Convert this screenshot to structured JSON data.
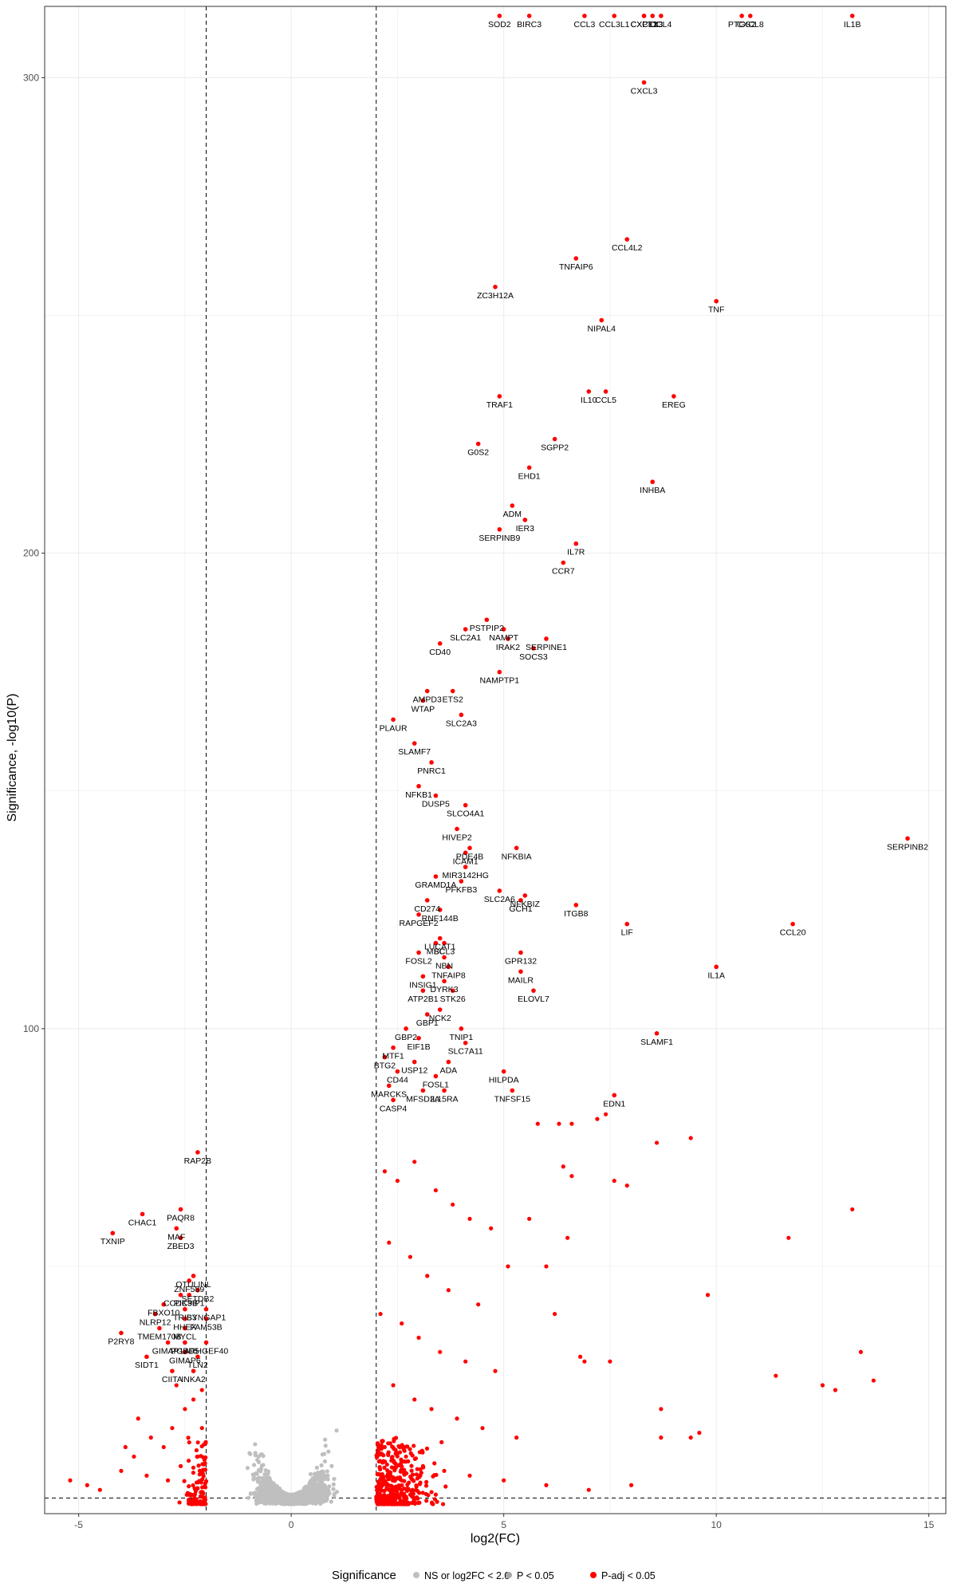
{
  "chart_data": {
    "type": "scatter",
    "title": "",
    "xlabel": "log2(FC)",
    "ylabel": "Significance, -log10(P)",
    "xlim": [
      -5.8,
      15.4
    ],
    "ylim": [
      -2,
      315
    ],
    "x_ticks": [
      -5,
      0,
      5,
      10,
      15
    ],
    "y_ticks": [
      100,
      200,
      300
    ],
    "grid": true,
    "fc_cutoff": 2.0,
    "p_cutoff_y": 1.3,
    "colors": {
      "ns": "#bfbfbf",
      "p": "#a8a8a8",
      "padj": "#ff0000",
      "label": "#000000"
    },
    "legend": {
      "position": "bottom",
      "title": "Significance",
      "entries": [
        {
          "label": "NS or log2FC < 2.0",
          "color": "#bfbfbf"
        },
        {
          "label": "P < 0.05",
          "color": "#a8a8a8"
        },
        {
          "label": "P-adj < 0.05",
          "color": "#ff0000"
        }
      ]
    },
    "labeled_points": [
      {
        "gene": "SOD2",
        "x": 4.9,
        "y": 313
      },
      {
        "gene": "BIRC3",
        "x": 5.6,
        "y": 313
      },
      {
        "gene": "CCL3",
        "x": 6.9,
        "y": 313
      },
      {
        "gene": "CCL3L1",
        "x": 7.6,
        "y": 313
      },
      {
        "gene": "CXCL2",
        "x": 8.3,
        "y": 313
      },
      {
        "gene": "CCL4",
        "x": 8.7,
        "y": 313
      },
      {
        "gene": "CXCL1",
        "x": 8.3,
        "y": 313
      },
      {
        "gene": "PTX3",
        "x": 8.5,
        "y": 313
      },
      {
        "gene": "PTGS2",
        "x": 10.6,
        "y": 313
      },
      {
        "gene": "CXCL8",
        "x": 10.8,
        "y": 313
      },
      {
        "gene": "IL1B",
        "x": 13.2,
        "y": 313
      },
      {
        "gene": "CXCL3",
        "x": 8.3,
        "y": 299
      },
      {
        "gene": "CCL4L2",
        "x": 7.9,
        "y": 266
      },
      {
        "gene": "TNFAIP6",
        "x": 6.7,
        "y": 262
      },
      {
        "gene": "ZC3H12A",
        "x": 4.8,
        "y": 256
      },
      {
        "gene": "TNF",
        "x": 10.0,
        "y": 253
      },
      {
        "gene": "NIPAL4",
        "x": 7.3,
        "y": 249
      },
      {
        "gene": "CCL5",
        "x": 7.4,
        "y": 234
      },
      {
        "gene": "IL10",
        "x": 7.0,
        "y": 234
      },
      {
        "gene": "TRAF1",
        "x": 4.9,
        "y": 233
      },
      {
        "gene": "EREG",
        "x": 9.0,
        "y": 233
      },
      {
        "gene": "SGPP2",
        "x": 6.2,
        "y": 224
      },
      {
        "gene": "G0S2",
        "x": 4.4,
        "y": 223
      },
      {
        "gene": "EHD1",
        "x": 5.6,
        "y": 218
      },
      {
        "gene": "INHBA",
        "x": 8.5,
        "y": 215
      },
      {
        "gene": "ADM",
        "x": 5.2,
        "y": 210
      },
      {
        "gene": "IER3",
        "x": 5.5,
        "y": 207
      },
      {
        "gene": "SERPINB9",
        "x": 4.9,
        "y": 205
      },
      {
        "gene": "IL7R",
        "x": 6.7,
        "y": 202
      },
      {
        "gene": "CCR7",
        "x": 6.4,
        "y": 198
      },
      {
        "gene": "PSTPIP2",
        "x": 4.6,
        "y": 186
      },
      {
        "gene": "SLC2A1",
        "x": 4.1,
        "y": 184
      },
      {
        "gene": "NAMPT",
        "x": 5.0,
        "y": 184
      },
      {
        "gene": "SERPINE1",
        "x": 6.0,
        "y": 182
      },
      {
        "gene": "CD40",
        "x": 3.5,
        "y": 181
      },
      {
        "gene": "IRAK2",
        "x": 5.1,
        "y": 182
      },
      {
        "gene": "SOCS3",
        "x": 5.7,
        "y": 180
      },
      {
        "gene": "NAMPTP1",
        "x": 4.9,
        "y": 175
      },
      {
        "gene": "AMPD3",
        "x": 3.2,
        "y": 171
      },
      {
        "gene": "ETS2",
        "x": 3.8,
        "y": 171
      },
      {
        "gene": "WTAP",
        "x": 3.1,
        "y": 169
      },
      {
        "gene": "SLC2A3",
        "x": 4.0,
        "y": 166
      },
      {
        "gene": "PLAUR",
        "x": 2.4,
        "y": 165
      },
      {
        "gene": "SLAMF7",
        "x": 2.9,
        "y": 160
      },
      {
        "gene": "PNRC1",
        "x": 3.3,
        "y": 156
      },
      {
        "gene": "NFKB1",
        "x": 3.0,
        "y": 151
      },
      {
        "gene": "DUSP5",
        "x": 3.4,
        "y": 149
      },
      {
        "gene": "SLCO4A1",
        "x": 4.1,
        "y": 147
      },
      {
        "gene": "HIVEP2",
        "x": 3.9,
        "y": 142
      },
      {
        "gene": "PDE4B",
        "x": 4.2,
        "y": 138
      },
      {
        "gene": "NFKBIA",
        "x": 5.3,
        "y": 138
      },
      {
        "gene": "ICAM1",
        "x": 4.1,
        "y": 137
      },
      {
        "gene": "MIR3142HG",
        "x": 4.1,
        "y": 134
      },
      {
        "gene": "GRAMD1A",
        "x": 3.4,
        "y": 132
      },
      {
        "gene": "PFKFB3",
        "x": 4.0,
        "y": 131
      },
      {
        "gene": "SLC2A6",
        "x": 4.9,
        "y": 129
      },
      {
        "gene": "NFKBIZ",
        "x": 5.5,
        "y": 128
      },
      {
        "gene": "CD274",
        "x": 3.2,
        "y": 127
      },
      {
        "gene": "GCH1",
        "x": 5.4,
        "y": 127
      },
      {
        "gene": "ITGB8",
        "x": 6.7,
        "y": 126
      },
      {
        "gene": "RNF144B",
        "x": 3.5,
        "y": 125
      },
      {
        "gene": "RAPGEF2",
        "x": 3.0,
        "y": 124
      },
      {
        "gene": "LIF",
        "x": 7.9,
        "y": 122
      },
      {
        "gene": "CCL20",
        "x": 11.8,
        "y": 122
      },
      {
        "gene": "LUCAT1",
        "x": 3.5,
        "y": 119
      },
      {
        "gene": "MSC",
        "x": 3.4,
        "y": 118
      },
      {
        "gene": "BCL3",
        "x": 3.6,
        "y": 118
      },
      {
        "gene": "NBN",
        "x": 3.6,
        "y": 115
      },
      {
        "gene": "GPR132",
        "x": 5.4,
        "y": 116
      },
      {
        "gene": "FOSL2",
        "x": 3.0,
        "y": 116
      },
      {
        "gene": "IL1A",
        "x": 10.0,
        "y": 113
      },
      {
        "gene": "TNFAIP8",
        "x": 3.7,
        "y": 113
      },
      {
        "gene": "MAILR",
        "x": 5.4,
        "y": 112
      },
      {
        "gene": "INSIG1",
        "x": 3.1,
        "y": 111
      },
      {
        "gene": "DYRK3",
        "x": 3.6,
        "y": 110
      },
      {
        "gene": "ELOVL7",
        "x": 5.7,
        "y": 108
      },
      {
        "gene": "ATP2B1",
        "x": 3.1,
        "y": 108
      },
      {
        "gene": "STK26",
        "x": 3.8,
        "y": 108
      },
      {
        "gene": "NCK2",
        "x": 3.5,
        "y": 104
      },
      {
        "gene": "GBP1",
        "x": 3.2,
        "y": 103
      },
      {
        "gene": "SERPINB2",
        "x": 14.5,
        "y": 140
      },
      {
        "gene": "SLAMF1",
        "x": 8.6,
        "y": 99
      },
      {
        "gene": "GBP2",
        "x": 2.7,
        "y": 100
      },
      {
        "gene": "TNIP1",
        "x": 4.0,
        "y": 100
      },
      {
        "gene": "EIF1B",
        "x": 3.0,
        "y": 98
      },
      {
        "gene": "SLC7A11",
        "x": 4.1,
        "y": 97
      },
      {
        "gene": "MTF1",
        "x": 2.4,
        "y": 96
      },
      {
        "gene": "BTG2",
        "x": 2.2,
        "y": 94
      },
      {
        "gene": "USP12",
        "x": 2.9,
        "y": 93
      },
      {
        "gene": "ADA",
        "x": 3.7,
        "y": 93
      },
      {
        "gene": "CD44",
        "x": 2.5,
        "y": 91
      },
      {
        "gene": "HILPDA",
        "x": 5.0,
        "y": 91
      },
      {
        "gene": "FOSL1",
        "x": 3.4,
        "y": 90
      },
      {
        "gene": "MARCKS",
        "x": 2.3,
        "y": 88
      },
      {
        "gene": "MFSD2A",
        "x": 3.1,
        "y": 87
      },
      {
        "gene": "IL15RA",
        "x": 3.6,
        "y": 87
      },
      {
        "gene": "TNFSF15",
        "x": 5.2,
        "y": 87
      },
      {
        "gene": "EDN1",
        "x": 7.6,
        "y": 86
      },
      {
        "gene": "CASP4",
        "x": 2.4,
        "y": 85
      },
      {
        "gene": "RAP2B",
        "x": -2.2,
        "y": 74
      },
      {
        "gene": "CHAC1",
        "x": -3.5,
        "y": 61
      },
      {
        "gene": "PAQR8",
        "x": -2.6,
        "y": 62
      },
      {
        "gene": "TXNIP",
        "x": -4.2,
        "y": 57
      },
      {
        "gene": "MAF",
        "x": -2.7,
        "y": 58
      },
      {
        "gene": "ZBED3",
        "x": -2.6,
        "y": 56
      },
      {
        "gene": "OTULINL",
        "x": -2.3,
        "y": 48
      },
      {
        "gene": "ZNF589",
        "x": -2.4,
        "y": 47
      },
      {
        "gene": "SETDB2",
        "x": -2.2,
        "y": 45
      },
      {
        "gene": "CCDC9B",
        "x": -2.6,
        "y": 44
      },
      {
        "gene": "PIK3IP1",
        "x": -2.4,
        "y": 44
      },
      {
        "gene": "FBXO10",
        "x": -3.0,
        "y": 42
      },
      {
        "gene": "TRIB3",
        "x": -2.5,
        "y": 41
      },
      {
        "gene": "SYNGAP1",
        "x": -2.0,
        "y": 41
      },
      {
        "gene": "NLRP12",
        "x": -3.2,
        "y": 40
      },
      {
        "gene": "HHEX",
        "x": -2.5,
        "y": 39
      },
      {
        "gene": "FAM53B",
        "x": -2.0,
        "y": 39
      },
      {
        "gene": "TMEM170B",
        "x": -3.1,
        "y": 37
      },
      {
        "gene": "MYCL",
        "x": -2.5,
        "y": 37
      },
      {
        "gene": "P2RY8",
        "x": -4.0,
        "y": 36
      },
      {
        "gene": "GIMAP1",
        "x": -2.9,
        "y": 34
      },
      {
        "gene": "PGBD5",
        "x": -2.5,
        "y": 34
      },
      {
        "gene": "ARHGEF40",
        "x": -2.0,
        "y": 34
      },
      {
        "gene": "SIDT1",
        "x": -3.4,
        "y": 31
      },
      {
        "gene": "GIMAP6",
        "x": -2.5,
        "y": 32
      },
      {
        "gene": "TLN2",
        "x": -2.2,
        "y": 31
      },
      {
        "gene": "CIITA",
        "x": -2.8,
        "y": 28
      },
      {
        "gene": "INKA2",
        "x": -2.3,
        "y": 28
      }
    ],
    "unlabeled_padj_points": [
      [
        5.8,
        80
      ],
      [
        6.3,
        80
      ],
      [
        6.6,
        80
      ],
      [
        7.2,
        81
      ],
      [
        7.4,
        82
      ],
      [
        6.4,
        71
      ],
      [
        6.6,
        69
      ],
      [
        7.6,
        68
      ],
      [
        7.9,
        67
      ],
      [
        8.6,
        76
      ],
      [
        9.4,
        77
      ],
      [
        13.2,
        62
      ],
      [
        11.7,
        56
      ],
      [
        9.8,
        44
      ],
      [
        13.4,
        32
      ],
      [
        11.4,
        27
      ],
      [
        12.5,
        25
      ],
      [
        12.8,
        24
      ],
      [
        13.7,
        26
      ],
      [
        9.6,
        15
      ],
      [
        9.4,
        14
      ],
      [
        8.7,
        14
      ],
      [
        8.7,
        20
      ],
      [
        6.9,
        30
      ],
      [
        6.8,
        31
      ],
      [
        7.5,
        30
      ],
      [
        6.0,
        50
      ],
      [
        6.5,
        56
      ],
      [
        5.6,
        60
      ],
      [
        6.2,
        40
      ],
      [
        5.1,
        50
      ],
      [
        -5.2,
        5
      ],
      [
        -4.5,
        3
      ],
      [
        -4.0,
        7
      ],
      [
        -3.7,
        10
      ],
      [
        -3.3,
        14
      ],
      [
        -3.0,
        12
      ],
      [
        -2.8,
        16
      ],
      [
        -2.5,
        20
      ],
      [
        -2.3,
        22
      ],
      [
        -2.1,
        24
      ],
      [
        -3.6,
        18
      ],
      [
        -3.9,
        12
      ],
      [
        -4.8,
        4
      ],
      [
        -3.4,
        6
      ],
      [
        -2.6,
        8
      ],
      [
        -2.2,
        10
      ],
      [
        -2.9,
        5
      ],
      [
        -2.4,
        13
      ],
      [
        -2.1,
        16
      ],
      [
        -2.7,
        25
      ],
      [
        2.2,
        70
      ],
      [
        2.5,
        68
      ],
      [
        2.9,
        72
      ],
      [
        3.4,
        66
      ],
      [
        3.8,
        63
      ],
      [
        4.2,
        60
      ],
      [
        4.7,
        58
      ],
      [
        2.3,
        55
      ],
      [
        2.8,
        52
      ],
      [
        3.2,
        48
      ],
      [
        3.7,
        45
      ],
      [
        4.4,
        42
      ],
      [
        2.1,
        40
      ],
      [
        2.6,
        38
      ],
      [
        3.0,
        35
      ],
      [
        3.5,
        32
      ],
      [
        4.1,
        30
      ],
      [
        4.8,
        28
      ],
      [
        2.4,
        25
      ],
      [
        2.9,
        22
      ],
      [
        3.3,
        20
      ],
      [
        3.9,
        18
      ],
      [
        4.5,
        16
      ],
      [
        5.3,
        14
      ],
      [
        2.2,
        12
      ],
      [
        2.7,
        10
      ],
      [
        3.1,
        8
      ],
      [
        3.6,
        7
      ],
      [
        4.2,
        6
      ],
      [
        5.0,
        5
      ],
      [
        6.0,
        4
      ],
      [
        7.0,
        3
      ],
      [
        8.0,
        4
      ],
      [
        2.3,
        3
      ],
      [
        2.8,
        2
      ],
      [
        3.4,
        2
      ]
    ]
  }
}
